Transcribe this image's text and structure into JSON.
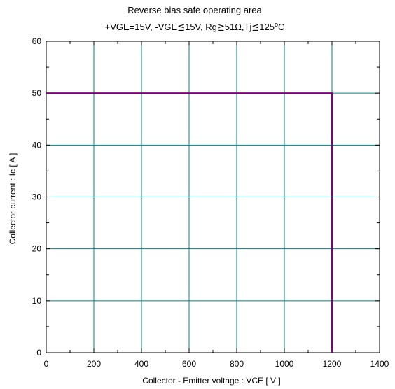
{
  "chart_data": {
    "type": "line",
    "title": "Reverse bias safe operating area",
    "subtitle": "+VGE=15V, -VGE≦15V, Rg≧51Ω,Tj≦125",
    "subtitle_superscript": "o",
    "subtitle_unit": "C",
    "xlabel": "Collector - Emitter voltage  :  VCE  [ V ]",
    "ylabel": "Collector current  : Ic  [ A ]",
    "xlim": [
      0,
      1400
    ],
    "ylim": [
      0,
      60
    ],
    "x_ticks": [
      0,
      200,
      400,
      600,
      800,
      1000,
      1200,
      1400
    ],
    "y_ticks": [
      0,
      10,
      20,
      30,
      40,
      50,
      60
    ],
    "x_tick_labels": [
      "0",
      "200",
      "400",
      "600",
      "800",
      "1000",
      "1200",
      "1400"
    ],
    "y_tick_labels": [
      "0",
      "10",
      "20",
      "30",
      "40",
      "50",
      "60"
    ],
    "grid": true,
    "series": [
      {
        "x": [
          0,
          1200,
          1200
        ],
        "y": [
          50,
          50,
          0
        ]
      }
    ],
    "colors": {
      "series": "#800080",
      "grid": "#008080",
      "frame": "#000000"
    }
  }
}
